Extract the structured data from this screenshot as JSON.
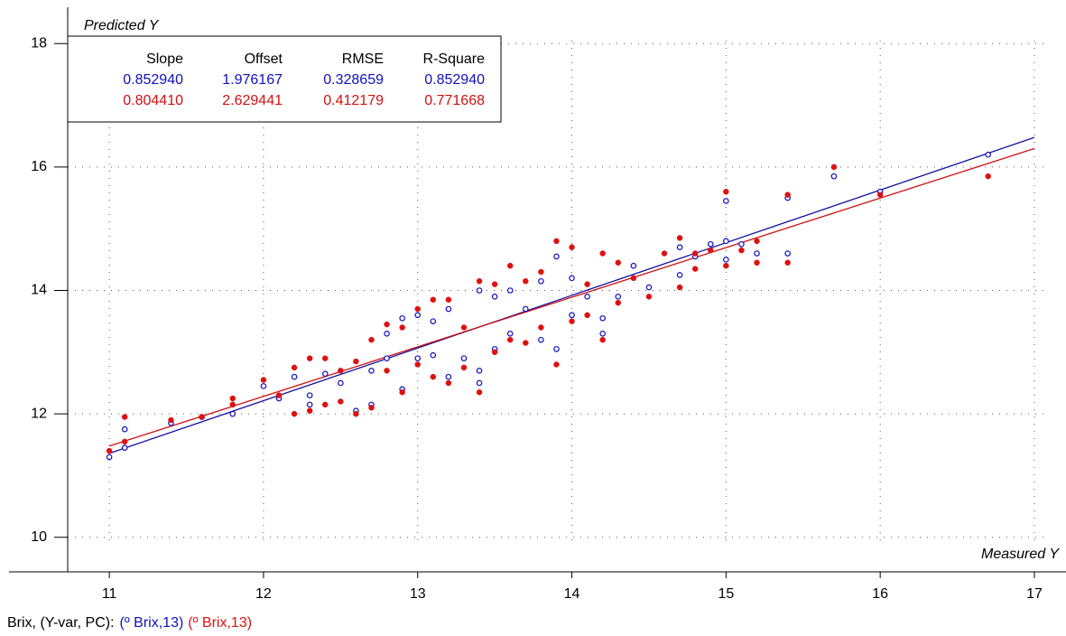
{
  "chart_data": {
    "type": "scatter",
    "title": "Predicted Y",
    "x_label": "Measured Y",
    "xlim": [
      10.73,
      17.17
    ],
    "ylim": [
      9.44,
      18.56
    ],
    "xticks": [
      11,
      12,
      13,
      14,
      15,
      16,
      17
    ],
    "yticks": [
      10,
      12,
      14,
      16,
      18
    ],
    "grid": true,
    "legend_title": "Brix, (Y-var, PC):",
    "stats_table": {
      "columns": [
        "Slope",
        "Offset",
        "RMSE",
        "R-Square"
      ],
      "rows": [
        [
          "0.852940",
          "1.976167",
          "0.328659",
          "0.852940"
        ],
        [
          "0.804410",
          "2.629441",
          "0.412179",
          "0.771668"
        ]
      ],
      "row_colors": [
        "#1010c0",
        "#d01010"
      ]
    },
    "fit_lines": [
      {
        "color": "#1010a0",
        "x": [
          11,
          17
        ],
        "values": [
          11.36,
          16.48
        ]
      },
      {
        "color": "#d01010",
        "x": [
          11,
          17
        ],
        "values": [
          11.48,
          16.3
        ]
      }
    ],
    "series": [
      {
        "name": "(º Brix,13)",
        "color": "#1010c0",
        "marker": "open",
        "x": [
          11.0,
          11.1,
          11.1,
          11.4,
          11.6,
          11.8,
          12.0,
          12.1,
          12.2,
          12.3,
          12.3,
          12.4,
          12.5,
          12.6,
          12.7,
          12.7,
          12.8,
          12.8,
          12.9,
          12.9,
          13.0,
          13.0,
          13.1,
          13.1,
          13.2,
          13.2,
          13.3,
          13.4,
          13.4,
          13.4,
          13.5,
          13.5,
          13.6,
          13.6,
          13.7,
          13.8,
          13.8,
          13.9,
          13.9,
          14.0,
          14.0,
          14.1,
          14.2,
          14.2,
          14.3,
          14.4,
          14.5,
          14.7,
          14.7,
          14.8,
          14.9,
          15.0,
          15.0,
          15.0,
          15.1,
          15.2,
          15.4,
          15.4,
          15.7,
          16.0,
          16.7
        ],
        "values": [
          11.3,
          11.75,
          11.45,
          11.85,
          11.95,
          12.0,
          12.45,
          12.25,
          12.6,
          12.3,
          12.15,
          12.65,
          12.5,
          12.05,
          12.15,
          12.7,
          13.3,
          12.9,
          13.55,
          12.4,
          13.6,
          12.9,
          13.5,
          12.95,
          13.7,
          12.6,
          12.9,
          14.0,
          12.7,
          12.5,
          13.9,
          13.05,
          14.0,
          13.3,
          13.7,
          14.15,
          13.2,
          14.55,
          13.05,
          14.2,
          13.6,
          13.9,
          13.55,
          13.3,
          13.9,
          14.4,
          14.05,
          14.7,
          14.25,
          14.55,
          14.75,
          15.45,
          14.8,
          14.5,
          14.75,
          14.6,
          15.5,
          14.6,
          15.85,
          15.6,
          16.2
        ]
      },
      {
        "name": "(º Brix,13)",
        "color": "#e01010",
        "marker": "filled",
        "x": [
          11.0,
          11.1,
          11.1,
          11.4,
          11.6,
          11.8,
          11.8,
          12.0,
          12.1,
          12.2,
          12.2,
          12.3,
          12.3,
          12.4,
          12.4,
          12.5,
          12.5,
          12.6,
          12.6,
          12.7,
          12.7,
          12.8,
          12.8,
          12.9,
          12.9,
          13.0,
          13.0,
          13.1,
          13.1,
          13.2,
          13.2,
          13.3,
          13.3,
          13.4,
          13.4,
          13.5,
          13.5,
          13.6,
          13.6,
          13.7,
          13.7,
          13.8,
          13.8,
          13.9,
          13.9,
          14.0,
          14.0,
          14.1,
          14.1,
          14.2,
          14.2,
          14.3,
          14.3,
          14.4,
          14.5,
          14.6,
          14.7,
          14.7,
          14.8,
          14.8,
          14.9,
          15.0,
          15.0,
          15.1,
          15.2,
          15.2,
          15.4,
          15.4,
          15.7,
          16.0,
          16.7
        ],
        "values": [
          11.4,
          11.95,
          11.55,
          11.9,
          11.95,
          12.25,
          12.15,
          12.55,
          12.3,
          12.75,
          12.0,
          12.9,
          12.05,
          12.9,
          12.15,
          12.7,
          12.2,
          12.85,
          12.0,
          13.2,
          12.1,
          13.45,
          12.7,
          13.4,
          12.35,
          13.7,
          12.8,
          13.85,
          12.6,
          13.85,
          12.5,
          13.4,
          12.75,
          14.15,
          12.35,
          14.1,
          13.0,
          14.4,
          13.2,
          14.15,
          13.15,
          14.3,
          13.4,
          14.8,
          12.8,
          14.7,
          13.5,
          14.1,
          13.6,
          14.6,
          13.2,
          14.45,
          13.8,
          14.2,
          13.9,
          14.6,
          14.85,
          14.05,
          14.6,
          14.35,
          14.65,
          15.6,
          14.4,
          14.65,
          14.8,
          14.45,
          15.55,
          14.45,
          16.0,
          15.55,
          15.85
        ]
      }
    ]
  }
}
